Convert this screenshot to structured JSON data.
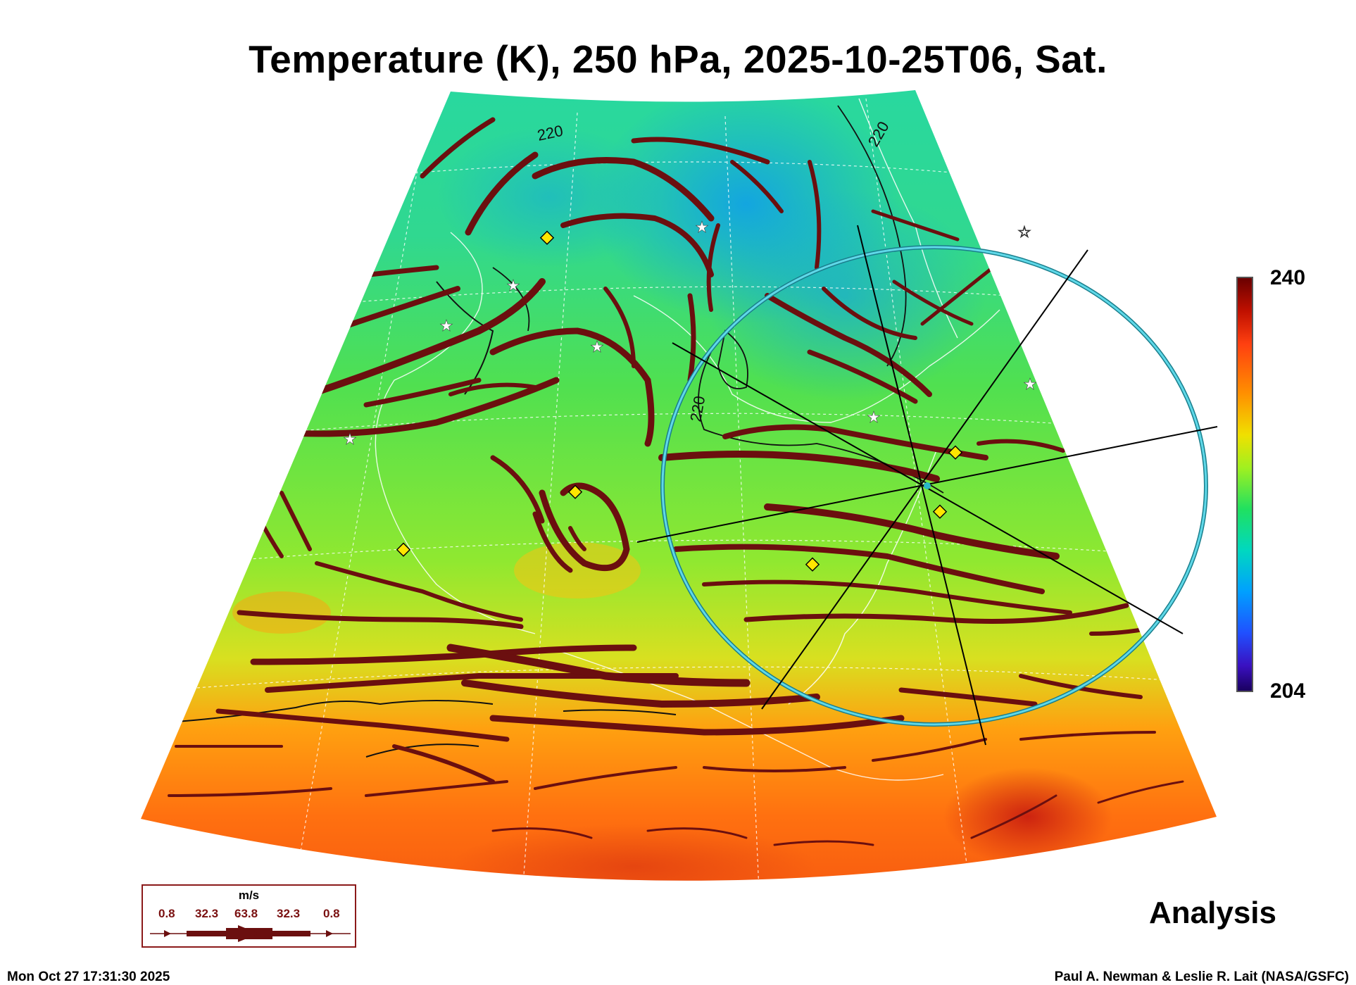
{
  "title": "Temperature (K), 250 hPa, 2025-10-25T06, Sat.",
  "colorbar": {
    "max": "240",
    "min": "204"
  },
  "contour_labels": [
    "220",
    "220",
    "220"
  ],
  "legend": {
    "unit": "m/s",
    "values": [
      "0.8",
      "32.3",
      "63.8",
      "32.3",
      "0.8"
    ]
  },
  "panel_label": "Analysis",
  "timestamp": "Mon Oct 27 17:31:30 2025",
  "credit": "Paul A. Newman & Leslie R. Lait (NASA/GSFC)",
  "colors": {
    "streamline": "#6b0f0f",
    "range_ring": "#29b6c8",
    "marker_diamond": "#ffe600"
  }
}
